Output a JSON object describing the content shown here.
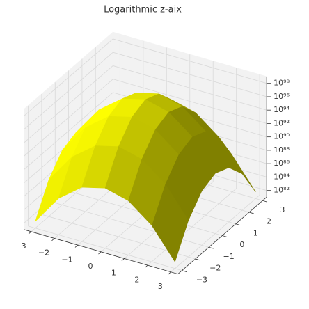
{
  "chart_data": {
    "type": "surface",
    "title": "Logarithmic z-aix",
    "x": [
      -3,
      -2,
      -1,
      0,
      1,
      2,
      3
    ],
    "y": [
      -3,
      -2,
      -1,
      0,
      1,
      2,
      3
    ],
    "z": [
      [
        1e+82,
        2.78e+86,
        1.29e+89,
        1e+90,
        1.29e+89,
        2.78e+86,
        1e+82
      ],
      [
        2.78e+86,
        7.74e+90,
        3.59e+93,
        2.78e+94,
        3.59e+93,
        7.74e+90,
        2.78e+86
      ],
      [
        1.29e+89,
        3.59e+93,
        1.67e+96,
        1.29e+97,
        1.67e+96,
        3.59e+93,
        1.29e+89
      ],
      [
        1e+90,
        2.78e+94,
        1.29e+97,
        1e+98,
        1.29e+97,
        2.78e+94,
        1e+90
      ],
      [
        1.29e+89,
        3.59e+93,
        1.67e+96,
        1.29e+97,
        1.67e+96,
        3.59e+93,
        1.29e+89
      ],
      [
        2.78e+86,
        7.74e+90,
        3.59e+93,
        2.78e+94,
        3.59e+93,
        7.74e+90,
        2.78e+86
      ],
      [
        1e+82,
        2.78e+86,
        1.29e+89,
        1e+90,
        1.29e+89,
        2.78e+86,
        1e+82
      ]
    ],
    "xlim": [
      -3.3,
      3.3
    ],
    "ylim": [
      -3.3,
      3.3
    ],
    "zlim": [
      1e+81,
      1e+99
    ],
    "zscale": "log",
    "xticks": [
      {
        "value": -3,
        "label": "−3"
      },
      {
        "value": -2,
        "label": "−2"
      },
      {
        "value": -1,
        "label": "−1"
      },
      0,
      1,
      2,
      3
    ],
    "yticks": [
      {
        "value": -3,
        "label": "−3"
      },
      {
        "value": -2,
        "label": "−2"
      },
      {
        "value": -1,
        "label": "−1"
      },
      0,
      1,
      2,
      3
    ],
    "zticks": [
      {
        "value": 1e+82,
        "label": "10⁸²"
      },
      {
        "value": 1e+84,
        "label": "10⁸⁴"
      },
      {
        "value": 1e+86,
        "label": "10⁸⁶"
      },
      {
        "value": 1e+88,
        "label": "10⁸⁸"
      },
      {
        "value": 1e+90,
        "label": "10⁹⁰"
      },
      {
        "value": 1e+92,
        "label": "10⁹²"
      },
      {
        "value": 1e+94,
        "label": "10⁹⁴"
      },
      {
        "value": 1e+96,
        "label": "10⁹⁶"
      },
      {
        "value": 1e+98,
        "label": "10⁹⁸"
      }
    ],
    "color": "#ffff00",
    "grid": true
  }
}
